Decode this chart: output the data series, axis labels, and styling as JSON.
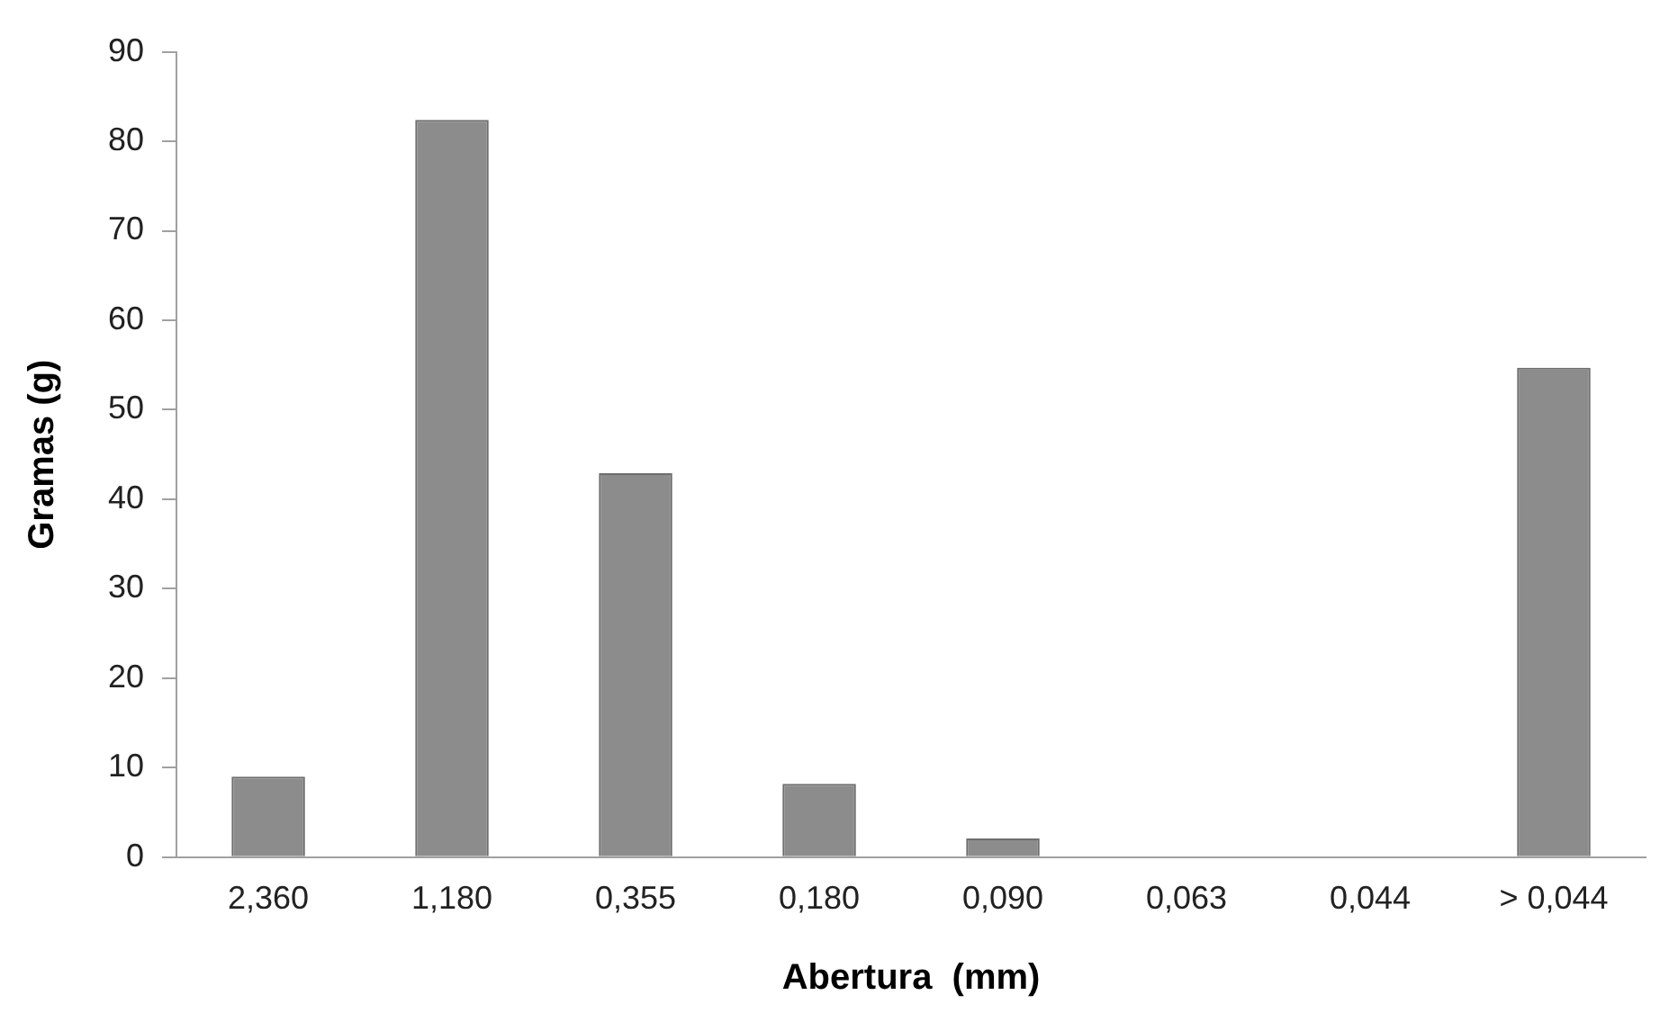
{
  "chart_data": {
    "type": "bar",
    "xlabel": "Abertura  (mm)",
    "ylabel": "Gramas (g)",
    "categories": [
      "2,360",
      "1,180",
      "0,355",
      "0,180",
      "0,090",
      "0,063",
      "0,044",
      "> 0,044"
    ],
    "values": [
      9.0,
      82.4,
      42.9,
      8.2,
      2.1,
      0,
      0,
      54.7
    ],
    "color": "#8c8c8c",
    "ylim": [
      0,
      90
    ],
    "yticks": [
      0,
      10,
      20,
      30,
      40,
      50,
      60,
      70,
      80,
      90
    ],
    "grid": false,
    "legend": false
  }
}
